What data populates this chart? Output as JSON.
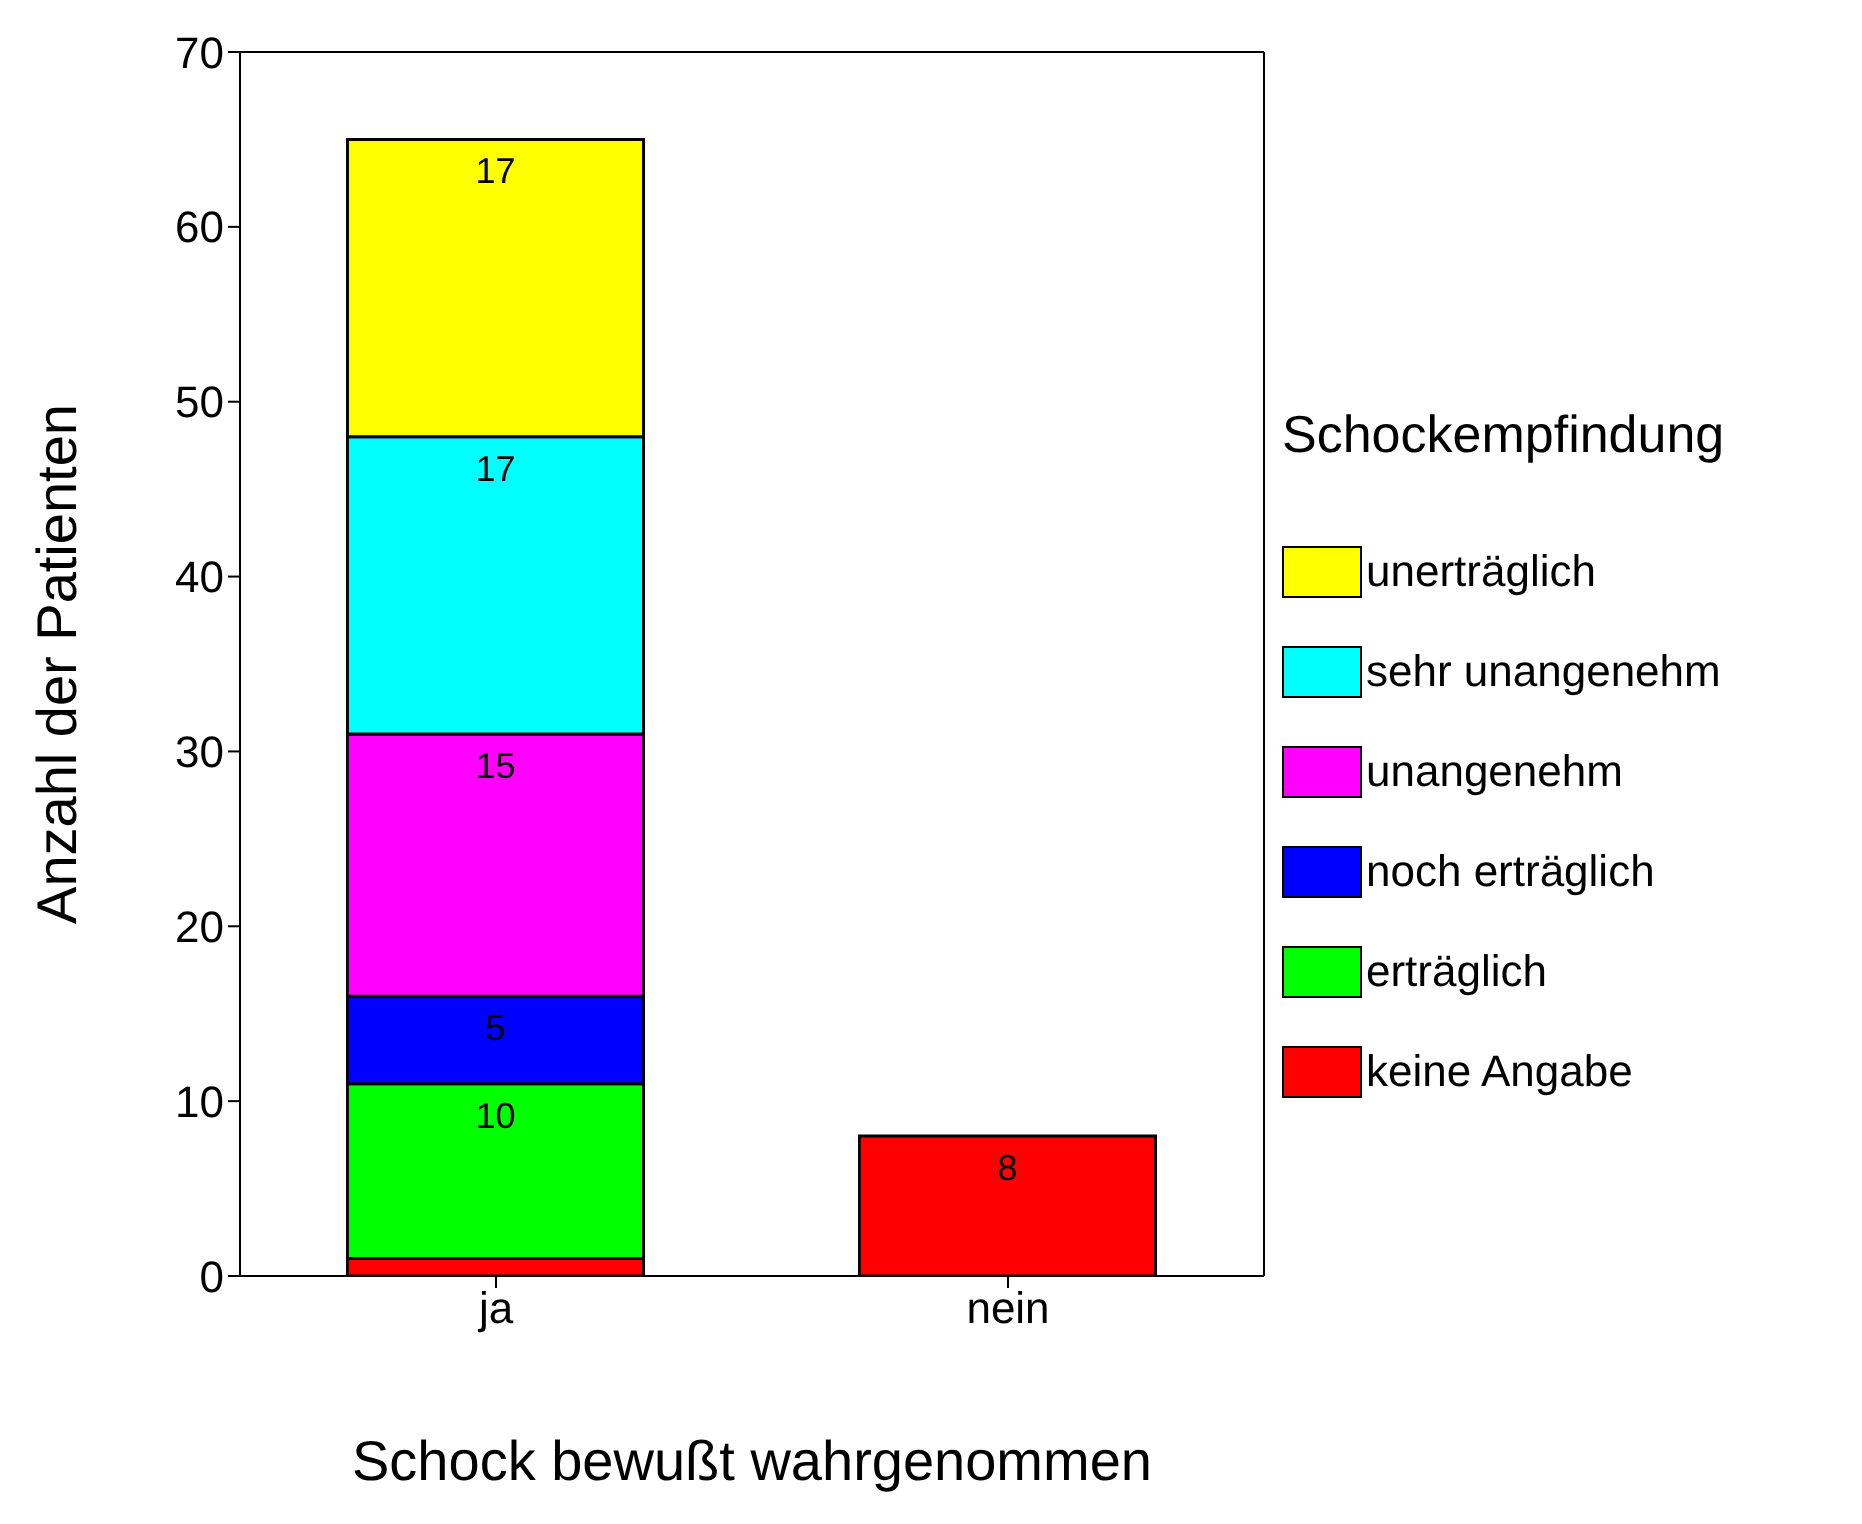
{
  "chart_data": {
    "type": "bar",
    "stacked": true,
    "xlabel": "Schock bewußt wahrgenommen",
    "ylabel": "Anzahl der Patienten",
    "legend_title": "Schockempfindung",
    "legend": "right",
    "categories": [
      "ja",
      "nein"
    ],
    "ylim": [
      0,
      70
    ],
    "yticks": [
      0,
      10,
      20,
      30,
      40,
      50,
      60,
      70
    ],
    "grid": false,
    "series": [
      {
        "name": "keine Angabe",
        "color": "#ff0000",
        "values": [
          1,
          8
        ],
        "value_labels": [
          null,
          "8"
        ]
      },
      {
        "name": "erträglich",
        "color": "#00ff00",
        "values": [
          10,
          0
        ],
        "value_labels": [
          "10",
          null
        ]
      },
      {
        "name": "noch erträglich",
        "color": "#0000ff",
        "values": [
          5,
          0
        ],
        "value_labels": [
          "5",
          null
        ]
      },
      {
        "name": "unangenehm",
        "color": "#ff00ff",
        "values": [
          15,
          0
        ],
        "value_labels": [
          "15",
          null
        ]
      },
      {
        "name": "sehr unangenehm",
        "color": "#00ffff",
        "values": [
          17,
          0
        ],
        "value_labels": [
          "17",
          null
        ]
      },
      {
        "name": "unerträglich",
        "color": "#ffff00",
        "values": [
          17,
          0
        ],
        "value_labels": [
          "17",
          null
        ]
      }
    ]
  }
}
